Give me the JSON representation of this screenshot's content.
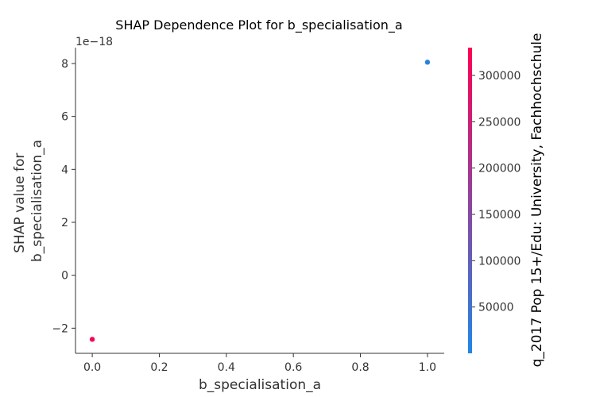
{
  "chart_data": {
    "type": "scatter",
    "title": "SHAP Dependence Plot for b_specialisation_a",
    "xlabel": "b_specialisation_a",
    "ylabel_lines": [
      "SHAP value for",
      "b_specialisation_a"
    ],
    "y_offset_text": "1e−18",
    "xlim": [
      -0.05,
      1.05
    ],
    "ylim": [
      -2.95,
      8.6
    ],
    "x_ticks": [
      0.0,
      0.2,
      0.4,
      0.6,
      0.8,
      1.0
    ],
    "x_tick_labels": [
      "0.0",
      "0.2",
      "0.4",
      "0.6",
      "0.8",
      "1.0"
    ],
    "y_ticks": [
      -2,
      0,
      2,
      4,
      6,
      8
    ],
    "y_tick_labels": [
      "−2",
      "0",
      "2",
      "4",
      "6",
      "8"
    ],
    "points": [
      {
        "x": 0.0,
        "y": -2.42,
        "color_value": 320000
      },
      {
        "x": 1.0,
        "y": 8.05,
        "color_value": 15000
      }
    ],
    "colorbar": {
      "label": "q_2017 Pop 15+/Edu: University, Fachhochschule",
      "range": [
        0,
        330000
      ],
      "ticks": [
        50000,
        100000,
        150000,
        200000,
        250000,
        300000
      ],
      "tick_labels": [
        "50000",
        "100000",
        "150000",
        "200000",
        "250000",
        "300000"
      ],
      "colors": [
        "#1e88e5",
        "#ff0052"
      ]
    }
  }
}
